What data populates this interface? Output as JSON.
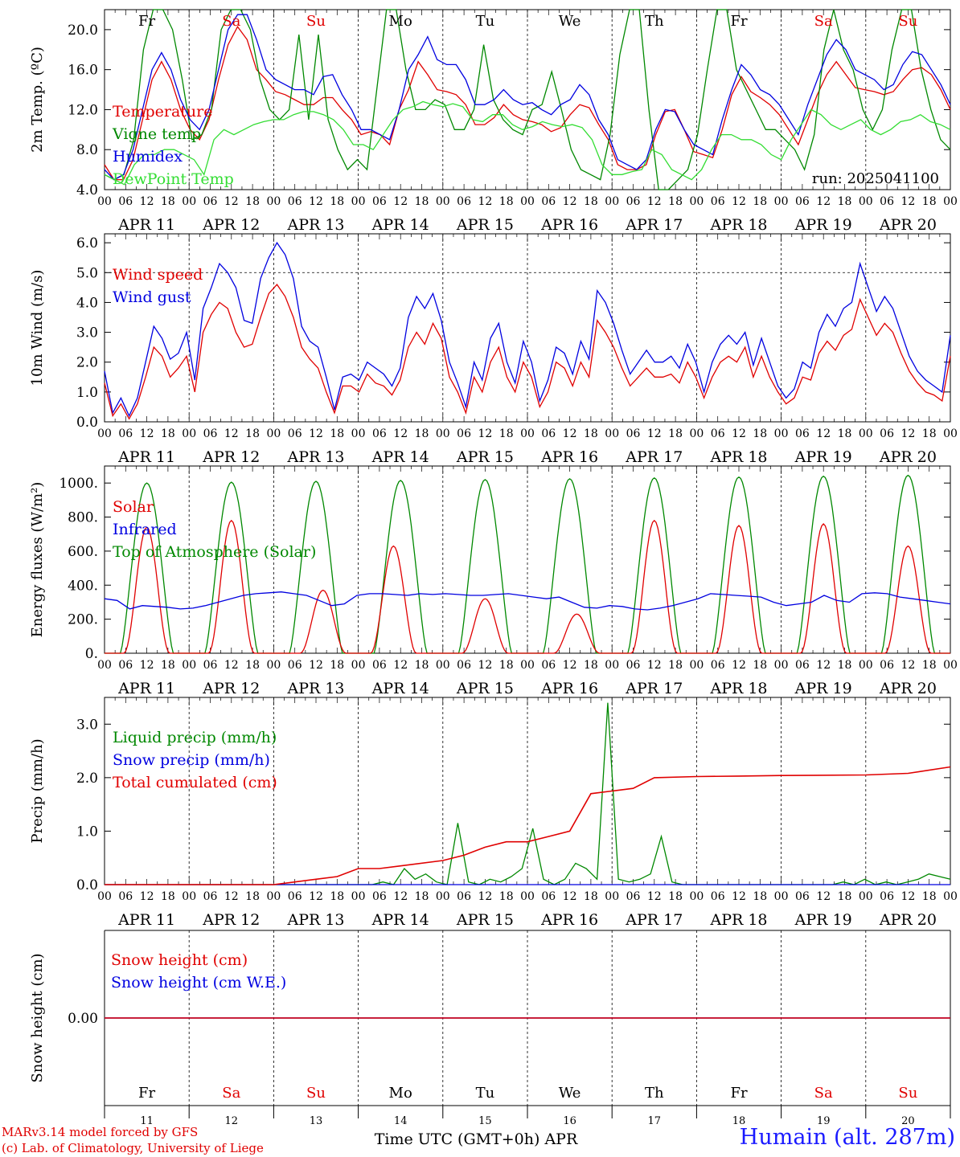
{
  "chart_data": [
    {
      "type": "line",
      "ylabel": "2m Temp. (ºC)",
      "ylim": [
        4,
        22
      ],
      "yticks": [
        "4.0",
        "8.0",
        "12.0",
        "16.0",
        "20.0"
      ],
      "ytick_values": [
        4,
        8,
        12,
        16,
        20
      ],
      "annotation": "run: 2025041100",
      "legend_placement": "left",
      "series": [
        {
          "name": "Temperature",
          "color": "#e00000",
          "values": [
            6.5,
            5,
            5,
            7,
            11,
            15,
            16.8,
            15,
            12,
            10,
            9,
            11,
            15,
            18.5,
            20.3,
            19,
            16,
            15,
            13.8,
            13.5,
            13,
            12.5,
            12.5,
            13.2,
            13.2,
            12,
            11,
            9.5,
            9.8,
            9.5,
            8.5,
            12,
            14,
            16.8,
            15.5,
            14,
            13.8,
            13.5,
            12.5,
            10.5,
            10.5,
            11.2,
            12.5,
            11.5,
            11,
            10.8,
            10.5,
            9.8,
            10.2,
            11.5,
            12.5,
            12.2,
            10.5,
            9,
            6.5,
            6,
            6,
            6.5,
            9.5,
            11.8,
            12,
            10,
            7.8,
            7.5,
            7.2,
            10,
            13.5,
            15.3,
            13.8,
            13.2,
            12.5,
            11.5,
            10,
            8.5,
            11,
            13.5,
            15.5,
            16.8,
            15.5,
            14.2,
            14,
            13.8,
            13.5,
            13.8,
            15,
            16,
            16.2,
            15.5,
            14,
            12
          ]
        },
        {
          "name": "Vigne temp",
          "color": "#008800",
          "values": [
            5.5,
            5,
            5.5,
            9,
            18,
            22,
            22,
            20,
            15,
            9,
            9.5,
            12,
            20,
            22,
            22,
            20,
            15,
            12,
            11,
            12,
            19.5,
            11,
            19.5,
            11,
            8,
            6,
            7,
            6,
            14,
            22,
            22,
            16,
            12,
            12,
            13,
            12.5,
            10,
            10,
            12,
            18.5,
            13,
            11,
            10,
            9.5,
            12,
            12.5,
            15.8,
            12,
            8,
            6,
            5.5,
            5,
            9.5,
            17.5,
            22,
            22,
            12,
            4,
            4,
            5,
            6,
            9.5,
            16,
            22,
            22,
            16,
            14,
            12,
            10,
            10,
            9,
            8,
            6,
            9.5,
            18,
            22,
            18,
            16,
            12,
            10,
            12,
            18,
            22,
            22,
            16,
            12,
            9,
            8
          ]
        },
        {
          "name": "Humidex",
          "color": "#0000e0",
          "values": [
            6,
            5,
            5.5,
            8,
            12,
            16,
            17.7,
            16,
            13,
            11,
            10,
            12,
            16,
            20,
            21.5,
            21.5,
            19,
            16,
            15,
            14.5,
            14,
            14,
            13.5,
            15.3,
            15.5,
            13.5,
            12,
            10,
            10,
            9.5,
            9,
            12,
            16,
            17.5,
            19.3,
            17,
            16.5,
            16.5,
            15,
            12.5,
            12.5,
            13,
            14,
            13,
            12.5,
            12.7,
            12,
            11.5,
            12.5,
            13,
            14.5,
            13.5,
            11,
            9.5,
            7,
            6.5,
            6,
            7,
            10,
            12,
            11.8,
            10,
            8.5,
            8,
            7.5,
            11,
            14,
            16.5,
            15.5,
            14,
            13.5,
            12.5,
            11,
            9.5,
            12.5,
            15,
            17.5,
            19,
            18,
            16,
            15.5,
            15,
            14,
            14.5,
            16.5,
            17.8,
            17.5,
            16,
            14.5,
            12.5
          ]
        },
        {
          "name": "DewPoint Temp",
          "color": "#33dd33",
          "values": [
            5.5,
            5,
            4.5,
            6.5,
            7.5,
            7.5,
            8,
            8,
            7.5,
            7,
            5.5,
            9,
            10,
            9.5,
            10,
            10.5,
            10.8,
            11,
            11,
            11.5,
            11.8,
            11.8,
            11.5,
            11,
            10,
            8.5,
            8.5,
            8,
            9.5,
            11,
            12,
            12.3,
            12.8,
            12.5,
            12.3,
            12.6,
            12.3,
            11,
            10.8,
            11.5,
            11.5,
            10.5,
            10,
            10.3,
            10.8,
            10.5,
            10.3,
            10.5,
            10.2,
            9,
            6.5,
            5.5,
            5.5,
            5.8,
            6,
            8,
            7.5,
            6,
            5.5,
            5,
            6,
            8,
            9.5,
            9.5,
            9,
            9,
            8.5,
            7.5,
            7,
            9,
            10.5,
            12,
            11.5,
            10.5,
            10,
            10.5,
            11,
            10,
            9.5,
            10,
            10.8,
            11,
            11.5,
            10.8,
            10.5,
            10
          ]
        }
      ]
    },
    {
      "type": "line",
      "ylabel": "10m Wind (m/s)",
      "ylim": [
        0,
        6.3
      ],
      "yticks": [
        "0.0",
        "1.0",
        "2.0",
        "3.0",
        "4.0",
        "5.0",
        "6.0"
      ],
      "ytick_values": [
        0,
        1,
        2,
        3,
        4,
        5,
        6
      ],
      "hline": 5.0,
      "legend_placement": "top-left",
      "series": [
        {
          "name": "Wind speed",
          "color": "#e00000",
          "values": [
            1.3,
            0.2,
            0.6,
            0.1,
            0.6,
            1.5,
            2.5,
            2.2,
            1.5,
            1.8,
            2.2,
            1.0,
            3.0,
            3.6,
            4.0,
            3.8,
            3.0,
            2.5,
            2.6,
            3.5,
            4.3,
            4.6,
            4.2,
            3.5,
            2.5,
            2.1,
            1.8,
            1.0,
            0.3,
            1.2,
            1.2,
            1.0,
            1.6,
            1.3,
            1.2,
            0.9,
            1.4,
            2.5,
            3.0,
            2.6,
            3.3,
            2.8,
            1.5,
            1.0,
            0.3,
            1.5,
            1.0,
            2.0,
            2.5,
            1.5,
            1.0,
            2.0,
            1.5,
            0.5,
            1.0,
            2.0,
            1.8,
            1.2,
            2.0,
            1.5,
            3.4,
            3.0,
            2.5,
            1.8,
            1.2,
            1.5,
            1.8,
            1.5,
            1.5,
            1.6,
            1.3,
            2.0,
            1.5,
            0.8,
            1.5,
            2.0,
            2.2,
            2.0,
            2.5,
            1.5,
            2.2,
            1.5,
            1.0,
            0.6,
            0.8,
            1.5,
            1.4,
            2.3,
            2.7,
            2.4,
            2.9,
            3.1,
            4.1,
            3.5,
            2.9,
            3.3,
            3.0,
            2.3,
            1.7,
            1.3,
            1.0,
            0.9,
            0.7,
            2.2
          ]
        },
        {
          "name": "Wind gust",
          "color": "#0000e0",
          "values": [
            1.7,
            0.3,
            0.8,
            0.2,
            0.8,
            2.0,
            3.2,
            2.8,
            2.1,
            2.3,
            3.0,
            1.4,
            3.8,
            4.5,
            5.3,
            5.0,
            4.5,
            3.4,
            3.3,
            4.8,
            5.5,
            6.0,
            5.6,
            4.8,
            3.2,
            2.7,
            2.5,
            1.5,
            0.4,
            1.5,
            1.6,
            1.4,
            2.0,
            1.8,
            1.6,
            1.2,
            1.8,
            3.5,
            4.2,
            3.8,
            4.3,
            3.4,
            2.0,
            1.3,
            0.5,
            2.0,
            1.4,
            2.8,
            3.3,
            2.0,
            1.3,
            2.7,
            2.0,
            0.7,
            1.4,
            2.5,
            2.3,
            1.6,
            2.7,
            2.1,
            4.4,
            4.0,
            3.3,
            2.4,
            1.6,
            2.0,
            2.4,
            2.0,
            2.0,
            2.2,
            1.8,
            2.6,
            2.0,
            1.0,
            2.0,
            2.6,
            2.9,
            2.6,
            3.0,
            1.9,
            2.8,
            2.0,
            1.2,
            0.8,
            1.1,
            2.0,
            1.8,
            3.0,
            3.6,
            3.2,
            3.8,
            4.0,
            5.3,
            4.5,
            3.7,
            4.2,
            3.8,
            3.0,
            2.2,
            1.7,
            1.4,
            1.2,
            1.0,
            2.9
          ]
        }
      ]
    },
    {
      "type": "line",
      "ylabel": "Energy fluxes (W/m²)",
      "ylim": [
        0,
        1100
      ],
      "yticks": [
        "0.",
        "200.",
        "400.",
        "600.",
        "800.",
        "1000."
      ],
      "ytick_values": [
        0,
        200,
        400,
        600,
        800,
        1000
      ],
      "legend_placement": "top-left",
      "series": [
        {
          "name": "Solar",
          "color": "#e00000",
          "peaks": [
            740,
            780,
            370,
            630,
            320,
            230,
            780,
            750,
            760,
            630
          ],
          "peak_hours": [
            12,
            12,
            14,
            10,
            12,
            14,
            12,
            12,
            12,
            12
          ]
        },
        {
          "name": "Infrared",
          "color": "#0000e0",
          "values": [
            320,
            310,
            260,
            280,
            275,
            270,
            260,
            265,
            280,
            300,
            320,
            340,
            350,
            355,
            360,
            350,
            340,
            310,
            280,
            290,
            340,
            350,
            350,
            345,
            340,
            350,
            345,
            350,
            345,
            340,
            340,
            345,
            350,
            340,
            330,
            320,
            330,
            300,
            270,
            265,
            280,
            275,
            260,
            255,
            265,
            280,
            300,
            320,
            350,
            345,
            340,
            335,
            330,
            300,
            280,
            290,
            300,
            340,
            310,
            300,
            350,
            355,
            350,
            330,
            320,
            310,
            300,
            290
          ]
        },
        {
          "name": "Top of Atmosphere (Solar)",
          "color": "#008800",
          "peaks": [
            1000,
            1005,
            1010,
            1015,
            1020,
            1025,
            1030,
            1035,
            1040,
            1045
          ]
        }
      ]
    },
    {
      "type": "line",
      "ylabel": "Precip (mm/h)",
      "ylim": [
        0,
        3.5
      ],
      "yticks": [
        "0.0",
        "1.0",
        "2.0",
        "3.0"
      ],
      "ytick_values": [
        0,
        1,
        2,
        3
      ],
      "legend_placement": "top-left",
      "series": [
        {
          "name": "Liquid precip (mm/h)",
          "color": "#008800",
          "values": [
            0,
            0,
            0,
            0,
            0,
            0,
            0,
            0,
            0,
            0,
            0,
            0,
            0,
            0,
            0,
            0,
            0,
            0,
            0,
            0,
            0,
            0,
            0,
            0,
            0,
            0,
            0.05,
            0,
            0.3,
            0.1,
            0.2,
            0.05,
            0,
            1.15,
            0.05,
            0,
            0.1,
            0.05,
            0.15,
            0.3,
            1.05,
            0.1,
            0,
            0.1,
            0.4,
            0.3,
            0.1,
            3.4,
            0.1,
            0.05,
            0.1,
            0.2,
            0.9,
            0.05,
            0,
            0,
            0,
            0,
            0,
            0,
            0,
            0,
            0,
            0,
            0,
            0,
            0,
            0,
            0,
            0.05,
            0,
            0.1,
            0,
            0.05,
            0,
            0.05,
            0.1,
            0.2,
            0.15,
            0.1
          ]
        },
        {
          "name": "Snow precip (mm/h)",
          "color": "#0000e0",
          "values": [
            0,
            0
          ]
        },
        {
          "name": "Total cumulated (cm)",
          "color": "#e00000",
          "x": [
            0,
            24,
            48,
            54,
            60,
            66,
            72,
            78,
            84,
            96,
            102,
            108,
            114,
            120,
            126,
            132,
            138,
            144,
            150,
            156,
            168,
            180,
            192,
            216,
            228,
            240
          ],
          "values": [
            0,
            0,
            0,
            0.05,
            0.1,
            0.15,
            0.3,
            0.3,
            0.35,
            0.45,
            0.55,
            0.7,
            0.8,
            0.8,
            0.9,
            1.0,
            1.7,
            1.75,
            1.8,
            2.0,
            2.02,
            2.03,
            2.04,
            2.05,
            2.08,
            2.2
          ]
        }
      ]
    },
    {
      "type": "line",
      "ylabel": "Snow height (cm)",
      "ylim": [
        -1,
        1
      ],
      "yticks": [
        "0.00"
      ],
      "ytick_values": [
        0
      ],
      "legend_placement": "top-left",
      "series": [
        {
          "name": "Snow height (cm)",
          "color": "#e00000",
          "values": [
            0,
            0
          ]
        },
        {
          "name": "Snow height (cm W.E.)",
          "color": "#0000e0",
          "values": [
            0,
            0
          ]
        }
      ]
    }
  ],
  "x_axis": {
    "hour_labels": [
      "00",
      "06",
      "12",
      "18"
    ],
    "date_labels": [
      "APR 11",
      "APR 12",
      "APR 13",
      "APR 14",
      "APR 15",
      "APR 16",
      "APR 17",
      "APR 18",
      "APR 19",
      "APR 20"
    ],
    "day_names": [
      "Fr",
      "Sa",
      "Su",
      "Mo",
      "Tu",
      "We",
      "Th",
      "Fr",
      "Sa",
      "Su"
    ],
    "day_name_colors": [
      "#000000",
      "#e00000",
      "#e00000",
      "#000000",
      "#000000",
      "#000000",
      "#000000",
      "#000000",
      "#e00000",
      "#e00000"
    ],
    "day_numbers": [
      "11",
      "12",
      "13",
      "14",
      "15",
      "16",
      "17",
      "18",
      "19",
      "20"
    ],
    "xlabel": "Time UTC (GMT+0h) APR"
  },
  "footer": {
    "credit_line1": "MARv3.14 model forced by GFS",
    "credit_line2": "(c) Lab. of Climatology, University of Liege",
    "station": "Humain (alt. 287m)"
  },
  "colors": {
    "red": "#e00000",
    "green": "#008800",
    "blue": "#0000e0",
    "lightgreen": "#33dd33"
  }
}
